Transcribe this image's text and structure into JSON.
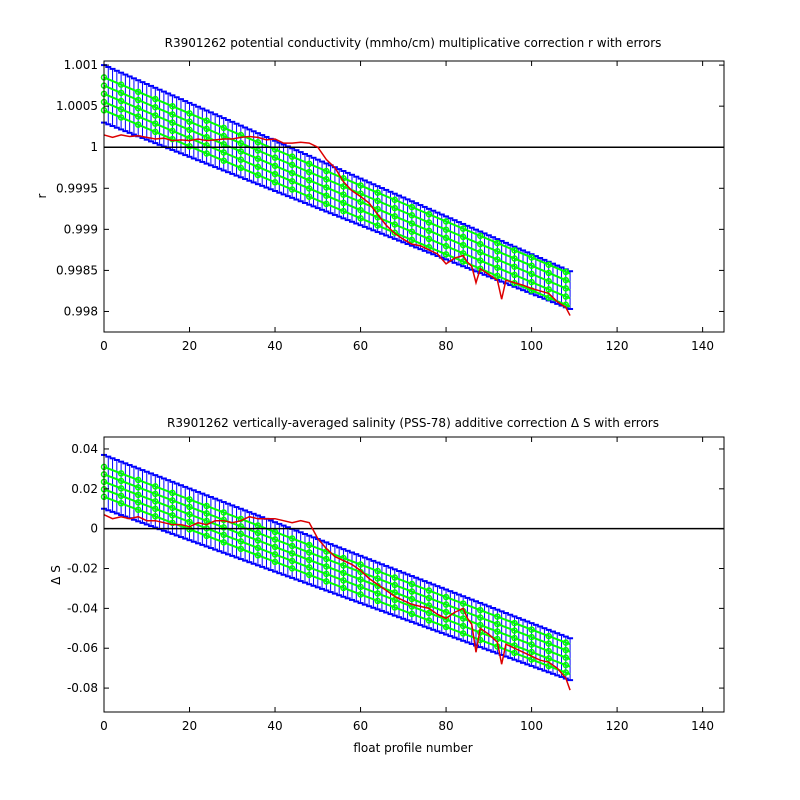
{
  "colors": {
    "errorbar": "#0000ff",
    "fit": "#00ff00",
    "observed": "#dd0000",
    "zero_line": "#000000"
  },
  "chart_data": [
    {
      "type": "line",
      "title": "R3901262 potential conductivity (mmho/cm) multiplicative correction r with errors",
      "xlabel": "",
      "ylabel": "r",
      "xlim": [
        0,
        145
      ],
      "ylim": [
        0.99775,
        1.00105
      ],
      "xticks": [
        0,
        20,
        40,
        60,
        80,
        100,
        120,
        140
      ],
      "xtick_labels": [
        "0",
        "20",
        "40",
        "60",
        "80",
        "100",
        "120",
        "140"
      ],
      "yticks": [
        0.998,
        0.9985,
        0.999,
        0.9995,
        1,
        1.0005,
        1.001
      ],
      "ytick_labels": [
        "0.998",
        "0.9985",
        "0.999",
        "0.9995",
        "1",
        "1.0005",
        "1.001"
      ],
      "reference_line": 1,
      "fit": {
        "x_range": [
          0,
          109
        ],
        "central_start": 1.00065,
        "central_end": 0.99826,
        "spread_start": 0.0002,
        "spread_end": 0.0002,
        "error_start": 0.00035,
        "error_end": 0.00023
      },
      "observed": {
        "x": [
          0,
          2,
          4,
          6,
          8,
          10,
          12,
          14,
          16,
          18,
          20,
          22,
          24,
          26,
          28,
          30,
          32,
          34,
          36,
          38,
          40,
          42,
          44,
          46,
          48,
          50,
          52,
          54,
          56,
          58,
          60,
          62,
          64,
          66,
          68,
          70,
          72,
          74,
          76,
          78,
          80,
          82,
          84,
          85,
          86,
          87,
          88,
          90,
          92,
          93,
          94,
          96,
          98,
          100,
          102,
          104,
          106,
          108,
          109
        ],
        "y": [
          1.00015,
          1.00012,
          1.00015,
          1.00013,
          1.00014,
          1.00012,
          1.0001,
          1.00011,
          1.00008,
          1.00009,
          1.00008,
          1.0001,
          1.00008,
          1.00009,
          1.0001,
          1.0001,
          1.00012,
          1.00013,
          1.00012,
          1.00009,
          1.0001,
          1.00005,
          1.00005,
          1.00006,
          1.00005,
          1.0,
          0.99985,
          0.99975,
          0.99958,
          0.99947,
          0.9994,
          0.99932,
          0.99918,
          0.99905,
          0.99895,
          0.99888,
          0.99882,
          0.9988,
          0.99875,
          0.9987,
          0.99858,
          0.99865,
          0.99868,
          0.9986,
          0.99855,
          0.99835,
          0.99852,
          0.99845,
          0.99838,
          0.99815,
          0.99838,
          0.99835,
          0.99832,
          0.99828,
          0.99825,
          0.99822,
          0.99812,
          0.99805,
          0.99795
        ]
      }
    },
    {
      "type": "line",
      "title": "R3901262 vertically-averaged salinity (PSS-78) additive correction Δ S with errors",
      "xlabel": "float profile number",
      "ylabel": "Δ S",
      "xlim": [
        0,
        145
      ],
      "ylim": [
        -0.092,
        0.046
      ],
      "xticks": [
        0,
        20,
        40,
        60,
        80,
        100,
        120,
        140
      ],
      "xtick_labels": [
        "0",
        "20",
        "40",
        "60",
        "80",
        "100",
        "120",
        "140"
      ],
      "yticks": [
        -0.08,
        -0.06,
        -0.04,
        -0.02,
        0,
        0.02,
        0.04
      ],
      "ytick_labels": [
        "-0.08",
        "-0.06",
        "-0.04",
        "-0.02",
        "0",
        "0.02",
        "0.04"
      ],
      "reference_line": 0,
      "fit": {
        "x_range": [
          0,
          109
        ],
        "central_start": 0.0235,
        "central_end": -0.0655,
        "spread_start": 0.0075,
        "spread_end": 0.0075,
        "error_start": 0.0135,
        "error_end": 0.0105
      },
      "observed": {
        "x": [
          0,
          2,
          4,
          6,
          8,
          10,
          12,
          14,
          16,
          18,
          20,
          22,
          24,
          26,
          28,
          30,
          32,
          34,
          36,
          38,
          40,
          42,
          44,
          46,
          48,
          50,
          52,
          54,
          56,
          58,
          60,
          62,
          64,
          66,
          68,
          70,
          72,
          74,
          76,
          78,
          80,
          82,
          84,
          85,
          86,
          87,
          88,
          90,
          92,
          93,
          94,
          96,
          98,
          100,
          102,
          104,
          106,
          108,
          109
        ],
        "y": [
          0.007,
          0.005,
          0.006,
          0.005,
          0.006,
          0.004,
          0.004,
          0.003,
          0.002,
          0.002,
          0.001,
          0.003,
          0.002,
          0.004,
          0.004,
          0.003,
          0.004,
          0.006,
          0.005,
          0.005,
          0.005,
          0.004,
          0.003,
          0.004,
          0.003,
          -0.005,
          -0.01,
          -0.014,
          -0.016,
          -0.018,
          -0.021,
          -0.025,
          -0.028,
          -0.031,
          -0.034,
          -0.036,
          -0.038,
          -0.039,
          -0.04,
          -0.043,
          -0.045,
          -0.042,
          -0.04,
          -0.045,
          -0.048,
          -0.062,
          -0.05,
          -0.053,
          -0.057,
          -0.068,
          -0.058,
          -0.06,
          -0.062,
          -0.064,
          -0.066,
          -0.067,
          -0.07,
          -0.075,
          -0.081
        ]
      }
    }
  ]
}
